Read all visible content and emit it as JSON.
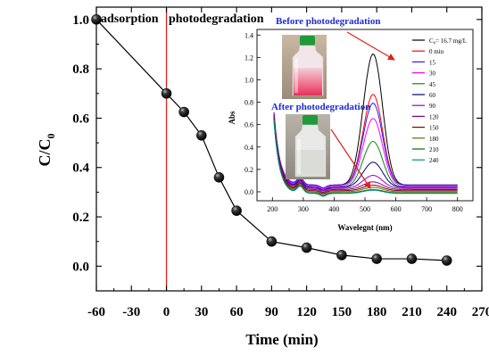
{
  "colors": {
    "vline": "#e0201c",
    "inset_title": "#1c2bd6",
    "arrow": "#e0201c",
    "marker": "#111111"
  },
  "chart_data": [
    {
      "type": "scatter",
      "title": "",
      "xlabel": "Time (min)",
      "ylabel": "C/C0",
      "ylabel_main": "C/C",
      "ylabel_sub": "0",
      "xlim": [
        -60,
        270
      ],
      "ylim": [
        -0.1,
        1.05
      ],
      "xticks": [
        -60,
        -30,
        0,
        30,
        60,
        90,
        120,
        150,
        180,
        210,
        240,
        270
      ],
      "xtick_labels": [
        "-60",
        "-30",
        "0",
        "30",
        "60",
        "90",
        "120",
        "150",
        "180",
        "210",
        "240",
        "270"
      ],
      "yticks": [
        0.0,
        0.2,
        0.4,
        0.6,
        0.8,
        1.0
      ],
      "ytick_labels": [
        "0.0",
        "0.2",
        "0.4",
        "0.6",
        "0.8",
        "1.0"
      ],
      "vertical_line_x": 0,
      "region_labels": [
        "adsorption",
        "photodegradation"
      ],
      "series": [
        {
          "x": [
            -60,
            0,
            15,
            30,
            45,
            60,
            90,
            120,
            150,
            180,
            210,
            240
          ],
          "y": [
            1.0,
            0.7,
            0.625,
            0.53,
            0.36,
            0.225,
            0.1,
            0.075,
            0.045,
            0.03,
            0.03,
            0.023
          ]
        }
      ]
    },
    {
      "type": "line",
      "title": "",
      "xlabel": "Wavelegnt (nm)",
      "ylabel": "Abs",
      "xlim": [
        150,
        850
      ],
      "ylim": [
        -0.08,
        1.45
      ],
      "xticks": [
        200,
        300,
        400,
        500,
        600,
        700,
        800
      ],
      "xtick_labels": [
        "200",
        "300",
        "400",
        "500",
        "600",
        "700",
        "800"
      ],
      "yticks": [
        0.0,
        0.2,
        0.4,
        0.6,
        0.8,
        1.0,
        1.2,
        1.4
      ],
      "ytick_labels": [
        "0.0",
        "0.2",
        "0.4",
        "0.6",
        "0.8",
        "1.0",
        "1.2",
        "1.4"
      ],
      "annotations": [
        "Before photodegradation",
        "After photodegradation"
      ],
      "legend_position": "top-right",
      "series": [
        {
          "name": "C₀= 16.7 mg/L",
          "color": "#000000",
          "peak": 1.2,
          "base": 0.06
        },
        {
          "name": "0   min",
          "color": "#ff0000",
          "peak": 0.83,
          "base": 0.06
        },
        {
          "name": "15",
          "color": "#2020ff",
          "peak": 0.75,
          "base": 0.06
        },
        {
          "name": "30",
          "color": "#ff00ff",
          "peak": 0.62,
          "base": 0.05
        },
        {
          "name": "45",
          "color": "#0b8a0b",
          "peak": 0.42,
          "base": 0.04
        },
        {
          "name": "60",
          "color": "#00007f",
          "peak": 0.23,
          "base": 0.04
        },
        {
          "name": "90",
          "color": "#9400d3",
          "peak": 0.12,
          "base": 0.03
        },
        {
          "name": "120",
          "color": "#7f007f",
          "peak": 0.07,
          "base": 0.02
        },
        {
          "name": "150",
          "color": "#7f0000",
          "peak": 0.05,
          "base": 0.01
        },
        {
          "name": "180",
          "color": "#6b6b00",
          "peak": 0.04,
          "base": 0.0
        },
        {
          "name": "210",
          "color": "#006b00",
          "peak": 0.03,
          "base": -0.01
        },
        {
          "name": "240",
          "color": "#008b8b",
          "peak": 0.03,
          "base": -0.015
        }
      ]
    }
  ]
}
